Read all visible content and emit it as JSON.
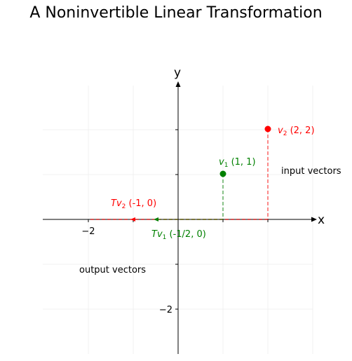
{
  "title": "A Noninvertible Linear Transformation",
  "axes": {
    "x_label": "x",
    "y_label": "y",
    "xlim": [
      -3,
      3
    ],
    "ylim": [
      -3,
      3
    ],
    "x_ticks": [
      {
        "value": -2,
        "label": "−2"
      }
    ],
    "y_ticks": [
      {
        "value": -2,
        "label": "−2"
      }
    ],
    "grid": true
  },
  "vectors": {
    "input": [
      {
        "name": "v1",
        "sym": "v",
        "sub": "1",
        "coords_text": " (1, 1)",
        "x": 1,
        "y": 1,
        "color": "#008000"
      },
      {
        "name": "v2",
        "sym": "v",
        "sub": "2",
        "coords_text": " (2, 2)",
        "x": 2,
        "y": 2,
        "color": "#ff0000"
      }
    ],
    "output": [
      {
        "name": "tv1",
        "sym": "Tv",
        "sub": "1",
        "coords_text": " (-1/2, 0)",
        "x": -0.5,
        "y": 0,
        "color": "#008000"
      },
      {
        "name": "tv2",
        "sym": "Tv",
        "sub": "2",
        "coords_text": " (-1, 0)",
        "x": -1,
        "y": 0,
        "color": "#ff0000"
      }
    ]
  },
  "annotations": {
    "input_label": "input vectors",
    "output_label": "output vectors"
  }
}
